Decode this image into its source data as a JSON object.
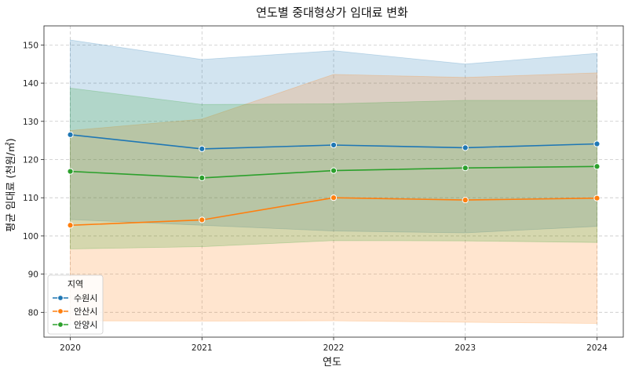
{
  "chart_data": {
    "type": "line",
    "title": "연도별 중대형상가 임대료 변화",
    "xlabel": "연도",
    "ylabel": "평균 임대료 (천원/㎡)",
    "x": [
      2020,
      2021,
      2022,
      2023,
      2024
    ],
    "x_tick_labels": [
      "2020",
      "2021",
      "2022",
      "2023",
      "2024"
    ],
    "xlim": [
      2019.8,
      2024.2
    ],
    "ylim": [
      73.5,
      155
    ],
    "y_ticks": [
      80,
      90,
      100,
      110,
      120,
      130,
      140,
      150
    ],
    "y_tick_labels": [
      "80",
      "90",
      "100",
      "110",
      "120",
      "130",
      "140",
      "150"
    ],
    "grid": true,
    "legend": {
      "title": "지역",
      "placement": "bottom-left"
    },
    "series": [
      {
        "name": "수원시",
        "color": "#1f77b4",
        "values": [
          126.5,
          122.8,
          123.8,
          123.1,
          124.1
        ],
        "band_lower": [
          104.3,
          102.8,
          101.3,
          100.8,
          102.5
        ],
        "band_upper": [
          151.3,
          146.2,
          148.5,
          145.0,
          147.8
        ]
      },
      {
        "name": "안산시",
        "color": "#ff7f0e",
        "values": [
          102.8,
          104.2,
          110.0,
          109.4,
          109.9
        ],
        "band_lower": [
          77.8,
          77.7,
          77.8,
          77.4,
          77.1
        ],
        "band_upper": [
          127.6,
          130.6,
          142.3,
          141.5,
          142.7
        ]
      },
      {
        "name": "안양시",
        "color": "#2ca02c",
        "values": [
          116.9,
          115.2,
          117.1,
          117.8,
          118.2
        ],
        "band_lower": [
          96.6,
          97.2,
          98.8,
          98.7,
          98.3
        ],
        "band_upper": [
          138.7,
          134.4,
          134.6,
          135.5,
          135.5
        ]
      }
    ]
  }
}
